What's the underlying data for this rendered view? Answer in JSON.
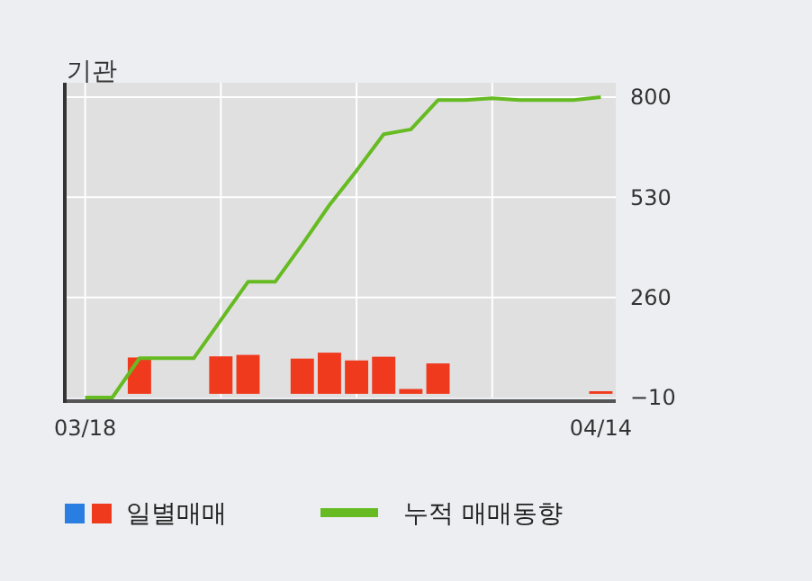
{
  "chart_data": {
    "type": "bar",
    "title": "기관",
    "categories": [
      "03/18",
      null,
      null,
      null,
      null,
      null,
      null,
      null,
      null,
      null,
      null,
      null,
      null,
      null,
      null,
      null,
      null,
      null,
      null,
      "04/14"
    ],
    "series": [
      {
        "name": "일별매매",
        "color": "#f03a1e",
        "values": [
          0,
          0,
          98,
          0,
          0,
          101,
          105,
          0,
          95,
          111,
          90,
          100,
          13,
          82,
          0,
          0,
          0,
          0,
          0,
          7
        ]
      },
      {
        "name": "누적 매매동향",
        "type": "line",
        "color": "#66bb22",
        "values": [
          -10,
          -10,
          96,
          96,
          96,
          199,
          302,
          302,
          403,
          509,
          602,
          700,
          713,
          792,
          792,
          797,
          792,
          792,
          792,
          800
        ]
      }
    ],
    "ylim": [
      -10,
      800
    ],
    "yticks": [
      -10,
      260,
      530,
      800
    ],
    "grid": true,
    "legend": "bottom"
  }
}
